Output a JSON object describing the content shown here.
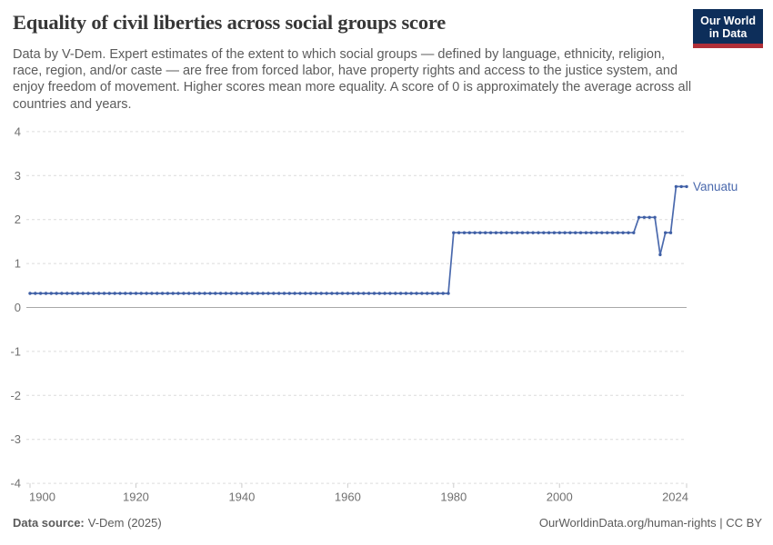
{
  "chart_data": {
    "type": "line",
    "title": "Equality of civil liberties across social groups score",
    "subtitle": "Data by V-Dem. Expert estimates of the extent to which social groups — defined by language, ethnicity, religion, race, region, and/or caste — are free from forced labor, have property rights and access to the justice system, and enjoy freedom of movement. Higher scores mean more equality. A score of 0 is approximately the average across all countries and years.",
    "xlabel": "",
    "ylabel": "",
    "x_range": [
      1900,
      2024
    ],
    "x_step_years": 1,
    "ylim": [
      -4,
      4
    ],
    "yticks": [
      4,
      3,
      2,
      1,
      0,
      -1,
      -2,
      -3,
      -4
    ],
    "xticks": [
      1900,
      1920,
      1940,
      1960,
      1980,
      2000,
      2024
    ],
    "grid": "horizontal-dashed",
    "zero_line": true,
    "legend_position": "end-of-line-label",
    "series": [
      {
        "name": "Vanuatu",
        "color": "#4a69ad",
        "segments": [
          {
            "from_year": 1900,
            "to_year": 1979,
            "value": 0.32
          },
          {
            "from_year": 1980,
            "to_year": 2014,
            "value": 1.7
          },
          {
            "from_year": 2015,
            "to_year": 2018,
            "value": 2.05
          },
          {
            "from_year": 2019,
            "to_year": 2019,
            "value": 1.2
          },
          {
            "from_year": 2020,
            "to_year": 2021,
            "value": 1.7
          },
          {
            "from_year": 2022,
            "to_year": 2024,
            "value": 2.75
          }
        ]
      }
    ]
  },
  "header": {
    "logo": {
      "line1": "Our World",
      "line2": "in Data"
    }
  },
  "footer": {
    "datasource_label": "Data source:",
    "datasource_value": "V-Dem (2025)",
    "attribution": "OurWorldinData.org/human-rights | CC BY"
  },
  "colors": {
    "line": "#4a69ad",
    "dot": "#3f5fa5",
    "logo_bg": "#0d2e5a",
    "logo_stripe": "#b02f38",
    "grid": "#dcdcdc",
    "zero_line": "#a8a8a8",
    "tick_mark": "#cccccc",
    "axis_text": "#707070",
    "title_text": "#373737",
    "subtitle_text": "#5b5b5b",
    "footer_text": "#5b5b5b"
  }
}
